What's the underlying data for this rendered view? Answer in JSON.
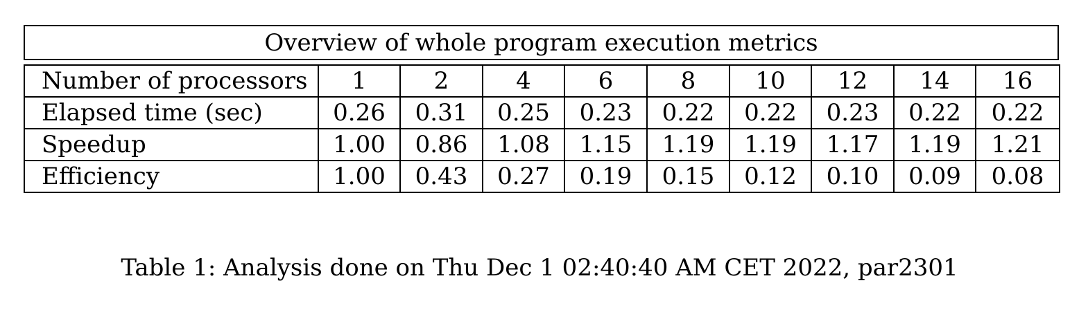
{
  "table": {
    "title": "Overview of whole program execution metrics",
    "header_label": "Number of processors",
    "processors": [
      "1",
      "2",
      "4",
      "6",
      "8",
      "10",
      "12",
      "14",
      "16"
    ],
    "rows": [
      {
        "label": "Elapsed time (sec)",
        "values": [
          "0.26",
          "0.31",
          "0.25",
          "0.23",
          "0.22",
          "0.22",
          "0.23",
          "0.22",
          "0.22"
        ]
      },
      {
        "label": "Speedup",
        "values": [
          "1.00",
          "0.86",
          "1.08",
          "1.15",
          "1.19",
          "1.19",
          "1.17",
          "1.19",
          "1.21"
        ]
      },
      {
        "label": "Efficiency",
        "values": [
          "1.00",
          "0.43",
          "0.27",
          "0.19",
          "0.15",
          "0.12",
          "0.10",
          "0.09",
          "0.08"
        ]
      }
    ]
  },
  "caption": "Table 1: Analysis done on Thu Dec 1 02:40:40 AM CET 2022, par2301"
}
